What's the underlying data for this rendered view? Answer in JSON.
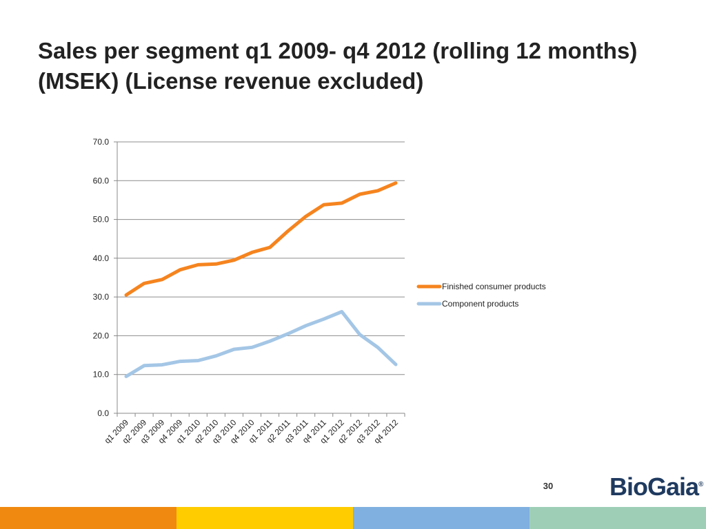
{
  "slide": {
    "title": "Sales per segment q1 2009- q4 2012 (rolling 12 months) (MSEK) (License revenue excluded)",
    "page_number": "30",
    "logo_text": "BioGaia",
    "logo_mark": "®",
    "colors": {
      "logo": "#1f3a5f",
      "footer": [
        "#f0890f",
        "#ffcc00",
        "#80b0df",
        "#9ecfb6"
      ]
    }
  },
  "chart_data": {
    "type": "line",
    "categories": [
      "q1 2009",
      "q2 2009",
      "q3 2009",
      "q4 2009",
      "q1 2010",
      "q2 2010",
      "q3 2010",
      "q4 2010",
      "q1 2011",
      "q2 2011",
      "q3 2011",
      "q4 2011",
      "q1 2012",
      "q2 2012",
      "q3 2012",
      "q4 2012"
    ],
    "series": [
      {
        "name": "Finished consumer products",
        "color": "#f5841f",
        "values": [
          30.5,
          33.5,
          34.5,
          37.0,
          38.3,
          38.5,
          39.5,
          41.5,
          42.8,
          47.0,
          50.8,
          53.8,
          54.2,
          56.5,
          57.4,
          59.4
        ]
      },
      {
        "name": "Component products",
        "color": "#a4c6e6",
        "values": [
          9.5,
          12.3,
          12.5,
          13.4,
          13.6,
          14.8,
          16.5,
          17.0,
          18.6,
          20.5,
          22.6,
          24.3,
          26.2,
          20.3,
          17.0,
          12.6
        ]
      }
    ],
    "ylim": [
      0,
      70
    ],
    "yticks": [
      "0.0",
      "10.0",
      "20.0",
      "30.0",
      "40.0",
      "50.0",
      "60.0",
      "70.0"
    ],
    "grid": true,
    "legend": "right"
  }
}
